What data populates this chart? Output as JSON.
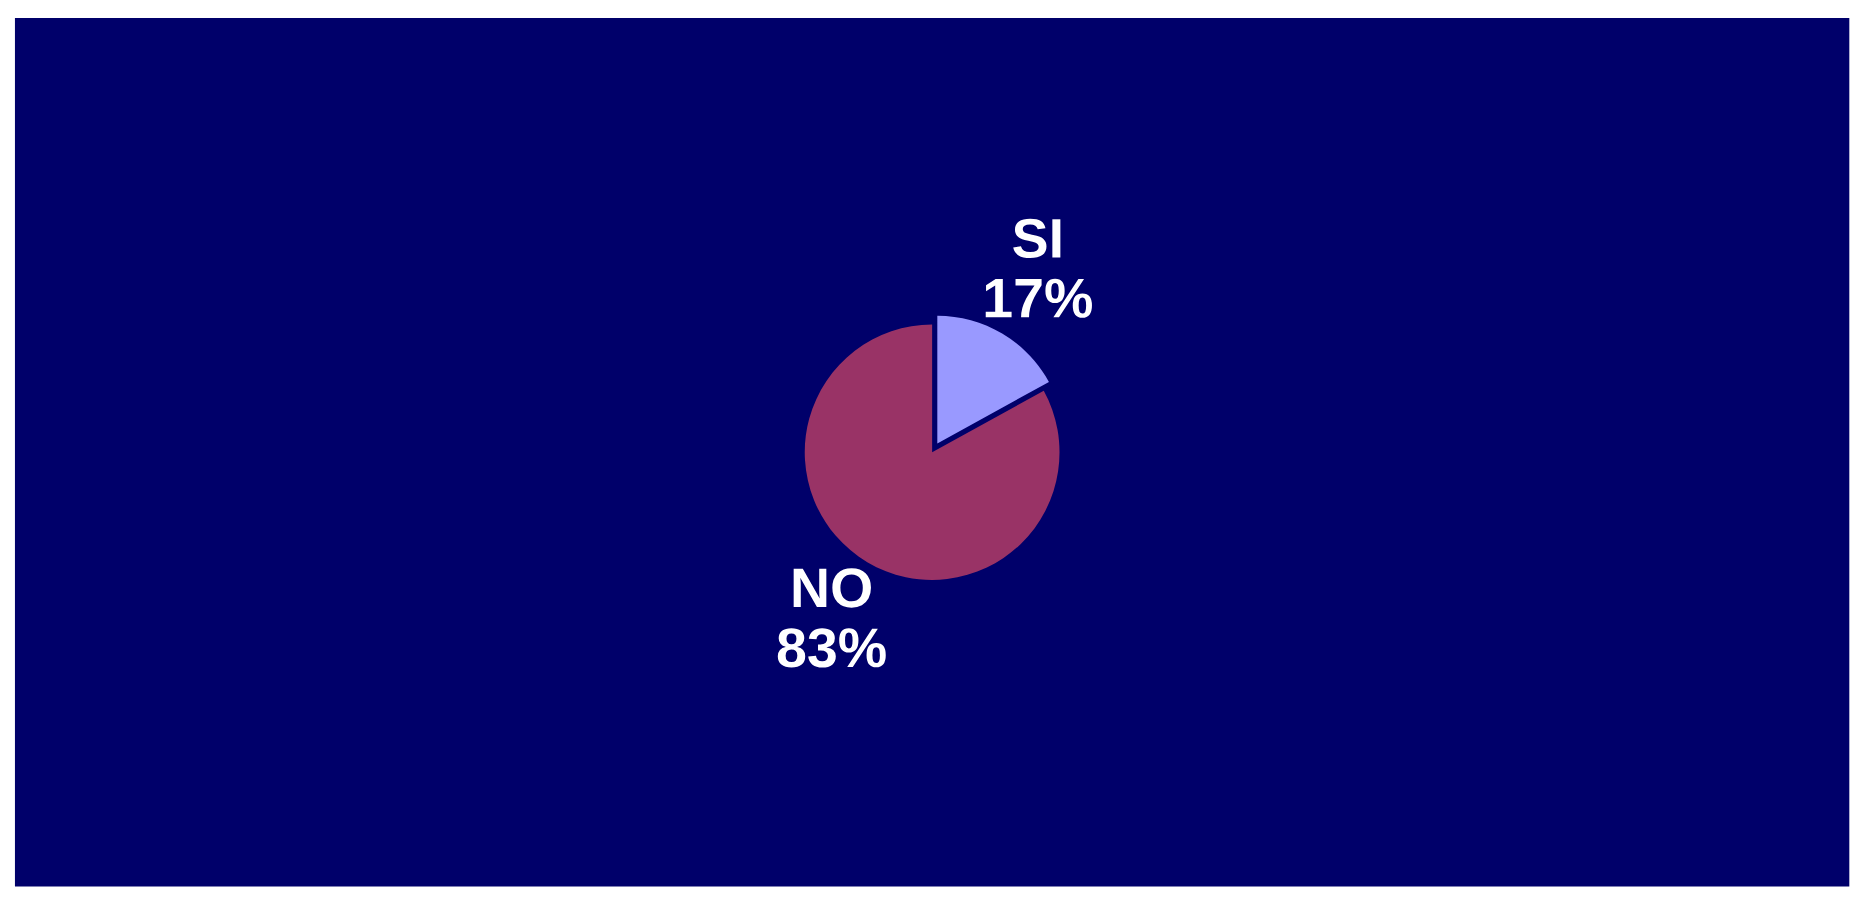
{
  "chart_data": {
    "type": "pie",
    "categories": [
      "SI",
      "NO"
    ],
    "values": [
      17,
      83
    ],
    "value_labels": [
      "17%",
      "83%"
    ],
    "colors": [
      "#9999ff",
      "#993366"
    ],
    "legend": false
  }
}
